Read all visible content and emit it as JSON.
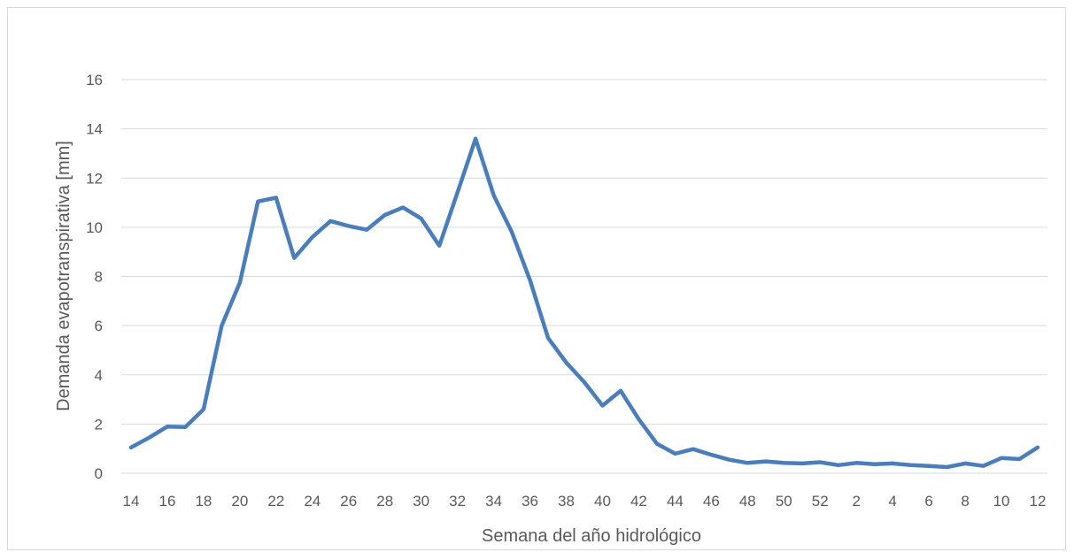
{
  "chart_data": {
    "type": "line",
    "title": "",
    "xlabel": "Semana del año hidrológico",
    "ylabel": "Demanda evapotranspirativa [mm]",
    "ylim": [
      0,
      16
    ],
    "yticks": [
      0,
      2,
      4,
      6,
      8,
      10,
      12,
      14,
      16
    ],
    "grid": true,
    "legend": "none",
    "line_color": "#4a7ebb",
    "x": [
      14,
      15,
      16,
      17,
      18,
      19,
      20,
      21,
      22,
      23,
      24,
      25,
      26,
      27,
      28,
      29,
      30,
      31,
      32,
      33,
      34,
      35,
      36,
      37,
      38,
      39,
      40,
      41,
      42,
      43,
      44,
      45,
      46,
      47,
      48,
      49,
      50,
      51,
      52,
      1,
      2,
      3,
      4,
      5,
      6,
      7,
      8,
      9,
      10,
      11,
      12
    ],
    "x_tick_labels": [
      "14",
      "16",
      "18",
      "20",
      "22",
      "24",
      "26",
      "28",
      "30",
      "32",
      "34",
      "36",
      "38",
      "40",
      "42",
      "44",
      "46",
      "48",
      "50",
      "52",
      "2",
      "4",
      "6",
      "8",
      "10",
      "12"
    ],
    "series": [
      {
        "values": [
          1.05,
          1.45,
          1.9,
          1.88,
          2.6,
          6.0,
          7.75,
          11.05,
          11.2,
          8.75,
          9.6,
          10.25,
          10.05,
          9.9,
          10.5,
          10.8,
          10.35,
          9.25,
          11.4,
          13.6,
          11.3,
          9.8,
          7.85,
          5.5,
          4.5,
          3.7,
          2.75,
          3.35,
          2.2,
          1.2,
          0.8,
          0.98,
          0.75,
          0.55,
          0.42,
          0.48,
          0.42,
          0.4,
          0.45,
          0.33,
          0.42,
          0.37,
          0.4,
          0.33,
          0.3,
          0.25,
          0.4,
          0.3,
          0.62,
          0.58,
          1.05
        ]
      }
    ]
  }
}
